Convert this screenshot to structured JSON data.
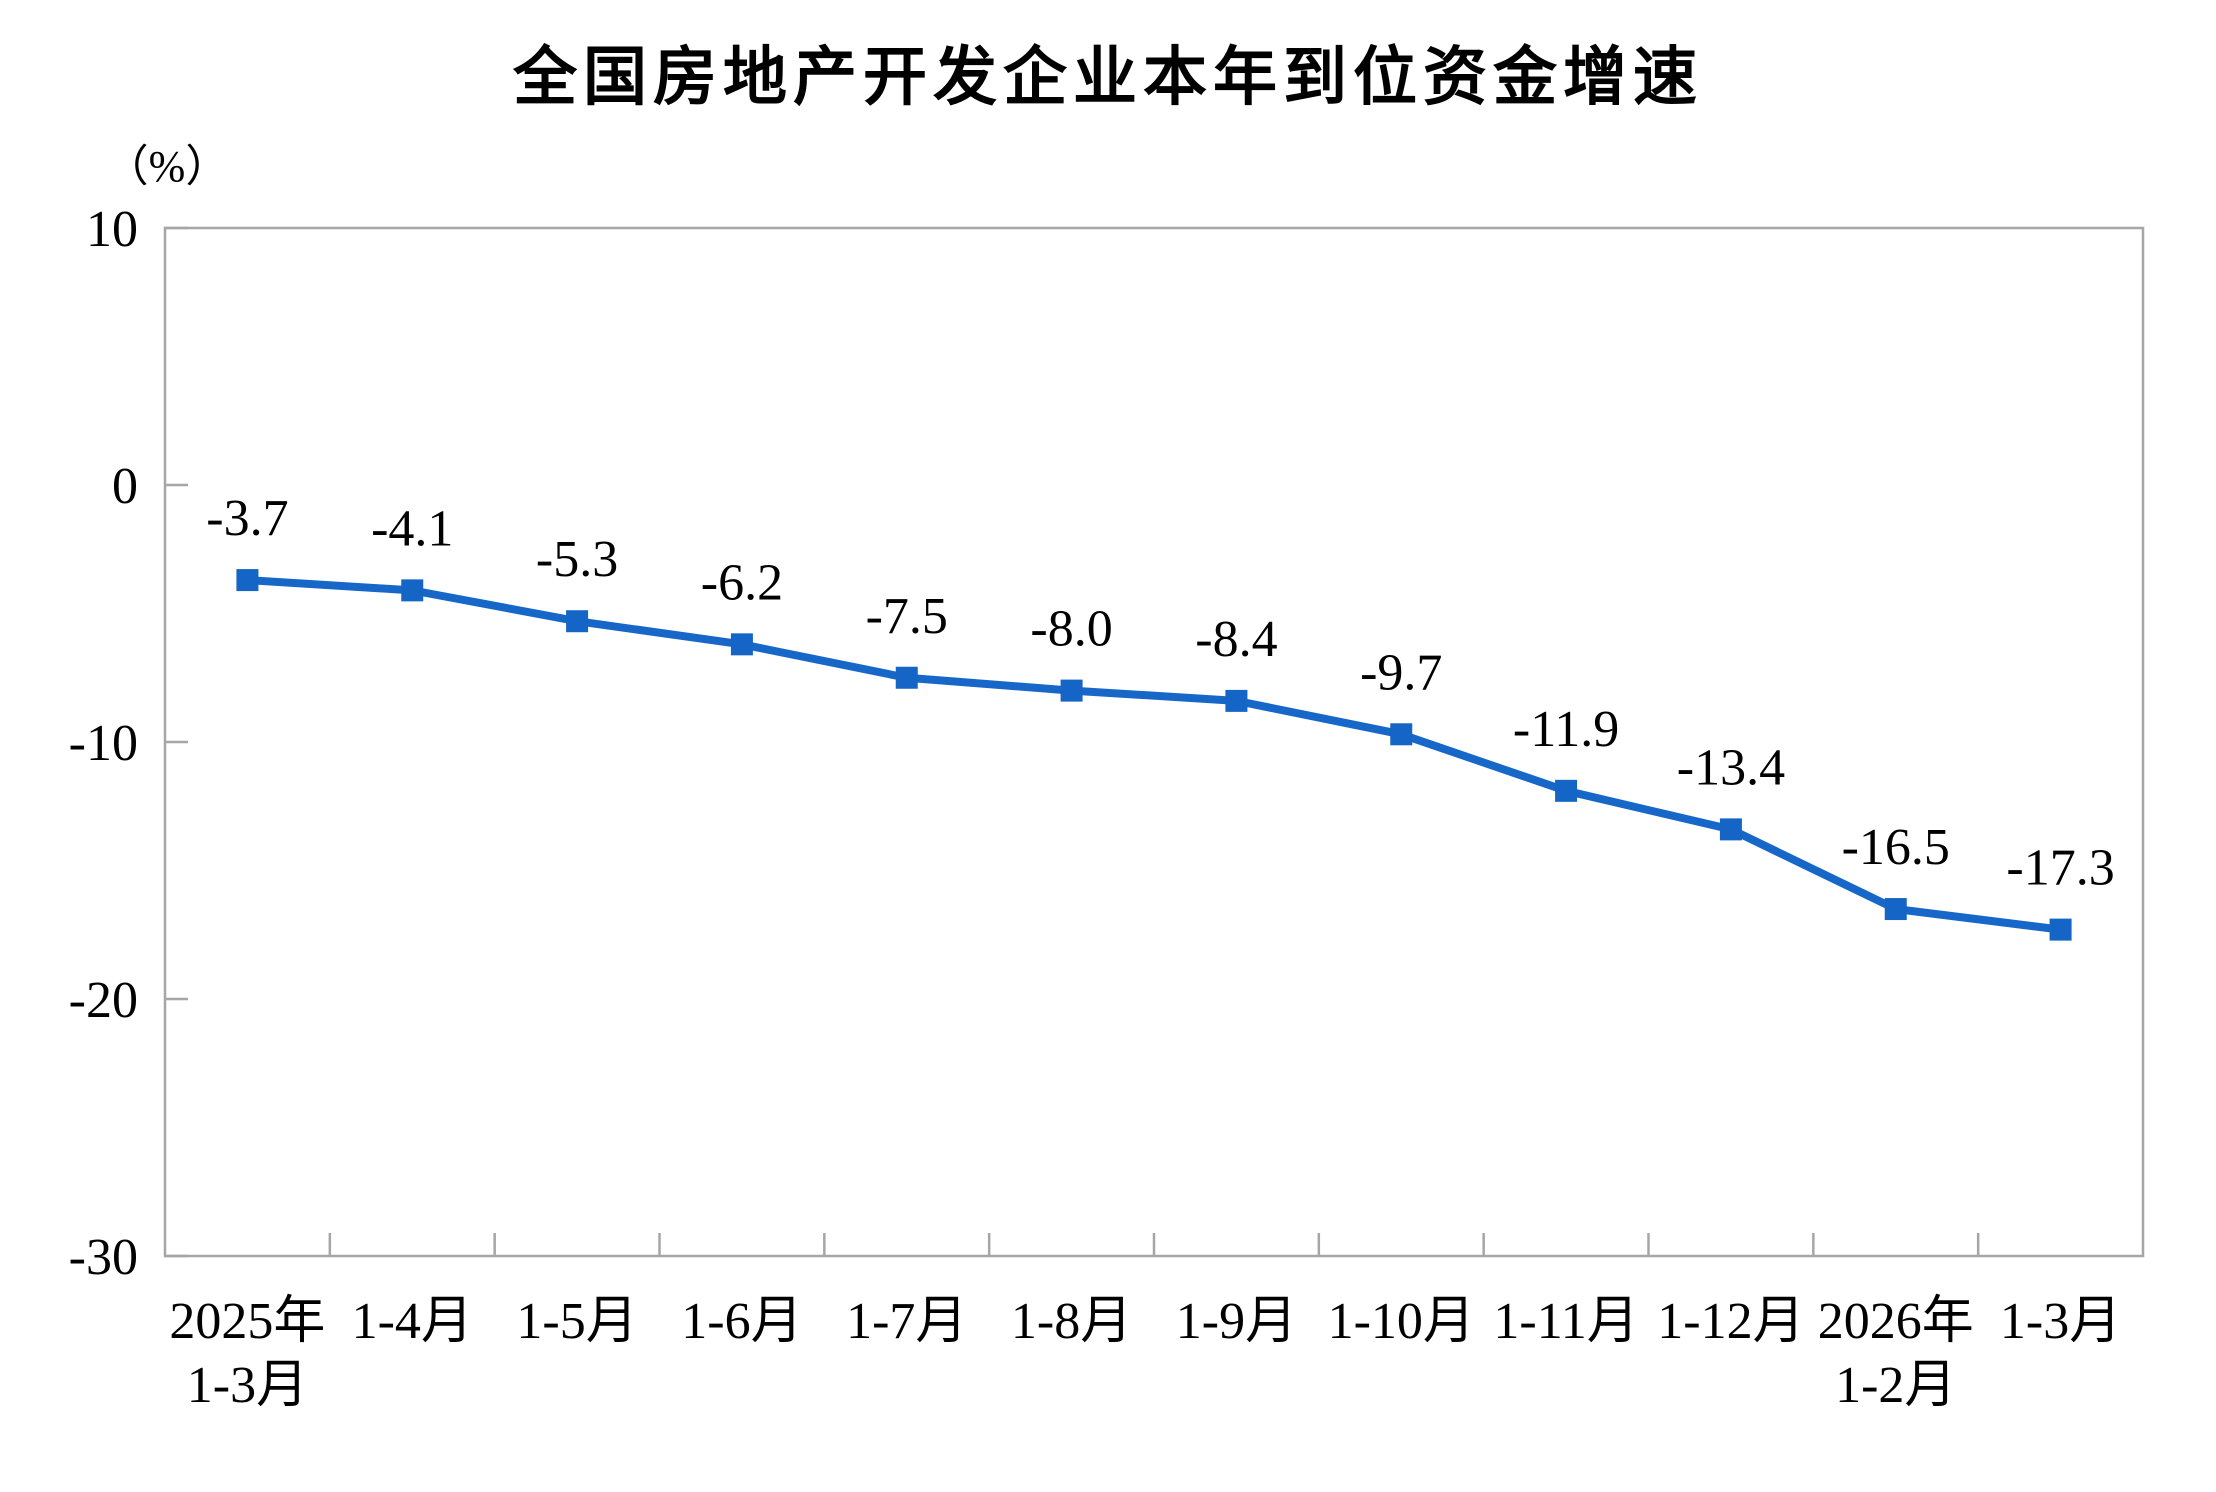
{
  "chart_data": {
    "type": "line",
    "title": "全国房地产开发企业本年到位资金增速",
    "unit_label": "（%）",
    "categories": [
      [
        "2025年",
        "1-3月"
      ],
      [
        "1-4月"
      ],
      [
        "1-5月"
      ],
      [
        "1-6月"
      ],
      [
        "1-7月"
      ],
      [
        "1-8月"
      ],
      [
        "1-9月"
      ],
      [
        "1-10月"
      ],
      [
        "1-11月"
      ],
      [
        "1-12月"
      ],
      [
        "2026年",
        "1-2月"
      ],
      [
        "1-3月"
      ]
    ],
    "values": [
      -3.7,
      -4.1,
      -5.3,
      -6.2,
      -7.5,
      -8.0,
      -8.4,
      -9.7,
      -11.9,
      -13.4,
      -16.5,
      -17.3
    ],
    "data_labels": [
      "-3.7",
      "-4.1",
      "-5.3",
      "-6.2",
      "-7.5",
      "-8.0",
      "-8.4",
      "-9.7",
      "-11.9",
      "-13.4",
      "-16.5",
      "-17.3"
    ],
    "ylim": [
      -30,
      10
    ],
    "yticks": [
      10,
      0,
      -10,
      -20,
      -30
    ],
    "ytick_interval": 10,
    "grid": false,
    "legend": "none",
    "marker": "square",
    "line_color": "#1767C8",
    "marker_color": "#1565C6",
    "axis_color": "#A6A6A6",
    "label_color": "#000000"
  }
}
